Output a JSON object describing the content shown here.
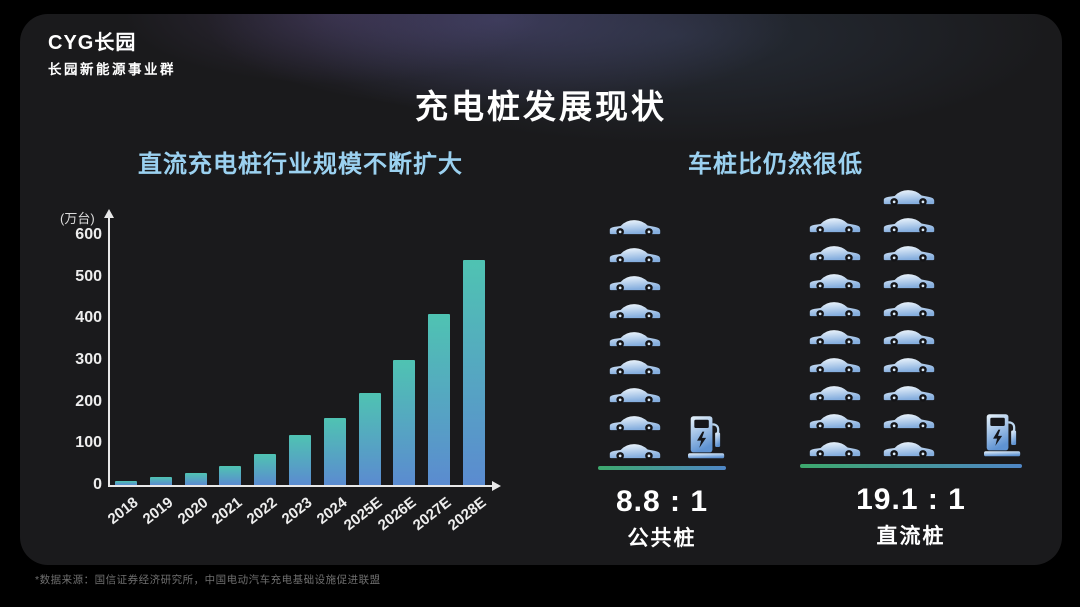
{
  "logo": {
    "line1": "CYG长园",
    "line2": "长园新能源事业群"
  },
  "title": "充电桩发展现状",
  "chart_section": {
    "subtitle": "直流充电桩行业规模不断扩大"
  },
  "ratio_section": {
    "subtitle": "车桩比仍然很低",
    "groups": [
      {
        "name": "public",
        "icon": "car-icon",
        "pile_icon": "charging-pile-icon",
        "car_columns": [
          9
        ],
        "ratio": "8.8 : 1",
        "label": "公共桩"
      },
      {
        "name": "dc",
        "icon": "car-icon",
        "pile_icon": "charging-pile-icon",
        "car_columns": [
          9,
          10
        ],
        "ratio": "19.1 : 1",
        "label": "直流桩"
      }
    ]
  },
  "chart_data": {
    "type": "bar",
    "title": "直流充电桩行业规模不断扩大",
    "unit_label": "(万台)",
    "categories": [
      "2018",
      "2019",
      "2020",
      "2021",
      "2022",
      "2023",
      "2024",
      "2025E",
      "2026E",
      "2027E",
      "2028E"
    ],
    "values": [
      10,
      20,
      28,
      46,
      75,
      120,
      162,
      220,
      300,
      410,
      540
    ],
    "yticks": [
      0,
      100,
      200,
      300,
      400,
      500,
      600
    ],
    "ylim": [
      0,
      620
    ],
    "grid": false,
    "legend": "none",
    "bar_gradient_top": "#4fc3b2",
    "bar_gradient_bottom": "#5b8bd0"
  },
  "footnote": "*数据来源：国信证券经济研究所，中国电动汽车充电基础设施促进联盟",
  "colors": {
    "card_bg": "#1a1a1c",
    "subtitle_blue": "#9bd1f0",
    "axis_white": "#e8e8e8",
    "baseline_green": "#3da96d",
    "baseline_blue": "#4f86c6",
    "car_light": "#f4fafe",
    "car_blue": "#85aede"
  }
}
